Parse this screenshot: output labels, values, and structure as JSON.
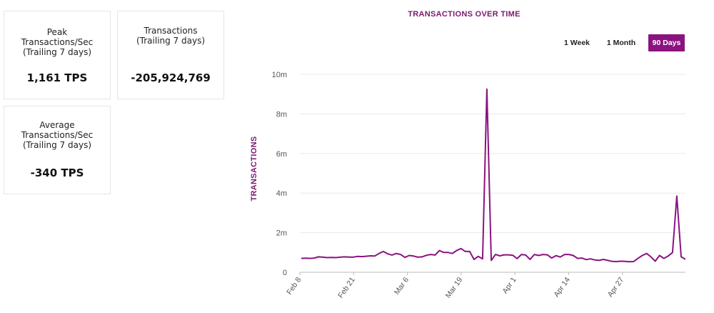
{
  "stats": {
    "peak": {
      "label": "Peak\nTransactions/Sec\n(Trailing 7 days)",
      "value": "1,161 TPS"
    },
    "transactions": {
      "label": "Transactions\n(Trailing 7 days)",
      "value": "-205,924,769"
    },
    "average": {
      "label": "Average\nTransactions/Sec\n(Trailing 7 days)",
      "value": "-340 TPS"
    }
  },
  "range_buttons": {
    "week": "1 Week",
    "month": "1 Month",
    "days90": "90 Days",
    "selected": "90 Days"
  },
  "colors": {
    "accent": "#8a1380",
    "title": "#7a1a6e",
    "grid": "#e8e8e8",
    "axis": "#555555"
  },
  "chart_data": {
    "type": "line",
    "title": "TRANSACTIONS OVER TIME",
    "xlabel": "",
    "ylabel": "TRANSACTIONS",
    "ylim": [
      0,
      10000000
    ],
    "y_ticks": [
      0,
      2000000,
      4000000,
      6000000,
      8000000,
      10000000
    ],
    "y_tick_labels": [
      "0",
      "2m",
      "4m",
      "6m",
      "8m",
      "10m"
    ],
    "x_ticks": [
      "Feb 8",
      "Feb 21",
      "Mar 6",
      "Mar 19",
      "Apr 1",
      "Apr 14",
      "Apr 27"
    ],
    "grid": true,
    "series": [
      {
        "values": [
          700000,
          710000,
          700000,
          720000,
          780000,
          760000,
          740000,
          750000,
          740000,
          760000,
          780000,
          770000,
          760000,
          800000,
          790000,
          810000,
          830000,
          820000,
          950000,
          1050000,
          930000,
          870000,
          950000,
          900000,
          750000,
          850000,
          820000,
          760000,
          780000,
          860000,
          900000,
          870000,
          1100000,
          1000000,
          1000000,
          950000,
          1100000,
          1200000,
          1050000,
          1050000,
          650000,
          800000,
          680000,
          9250000,
          600000,
          900000,
          830000,
          880000,
          880000,
          860000,
          690000,
          900000,
          870000,
          650000,
          900000,
          850000,
          900000,
          880000,
          720000,
          840000,
          770000,
          900000,
          900000,
          850000,
          700000,
          720000,
          640000,
          680000,
          620000,
          600000,
          650000,
          600000,
          550000,
          540000,
          560000,
          550000,
          530000,
          540000,
          700000,
          850000,
          950000,
          780000,
          560000,
          850000,
          700000,
          820000,
          1000000,
          3850000,
          780000,
          660000
        ]
      }
    ]
  }
}
